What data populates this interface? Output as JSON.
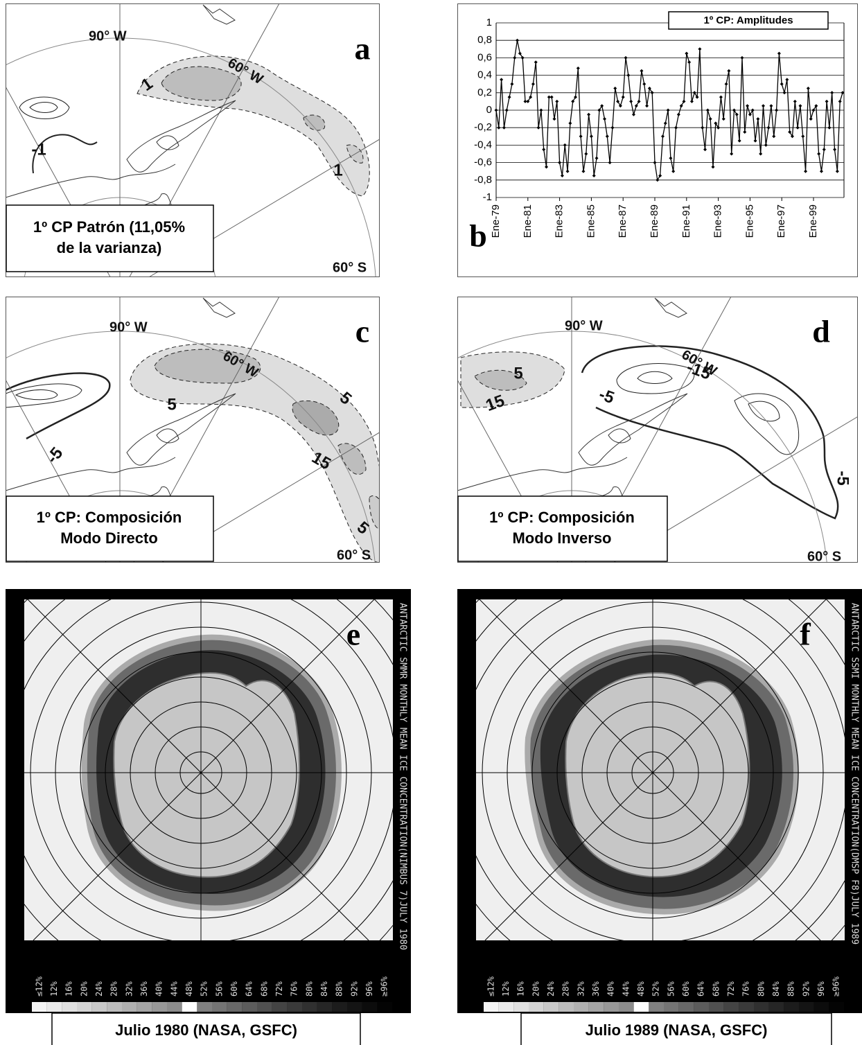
{
  "panels": [
    {
      "letter": "a",
      "labels": [
        "90° W",
        "60° W",
        "60° S"
      ],
      "contours": [
        "1",
        "-1",
        "1"
      ],
      "caption": [
        "1º CP Patrón (11,05%",
        "de la varianza)"
      ]
    },
    {
      "letter": "c",
      "labels": [
        "90° W",
        "60° W",
        "60° S"
      ],
      "contours": [
        "5",
        "-5",
        "5",
        "15",
        "5"
      ],
      "caption": [
        "1º CP: Composición",
        "Modo Directo"
      ]
    },
    {
      "letter": "d",
      "labels": [
        "90° W",
        "60° W",
        "60° S"
      ],
      "contours": [
        "5",
        "15",
        "-15",
        "-5",
        "-5"
      ],
      "caption": [
        "1º CP: Composición",
        "Modo Inverso"
      ]
    }
  ],
  "chart_letter": "b",
  "chart_data": {
    "type": "line",
    "categories": [
      "Ene-79",
      null,
      null,
      null,
      null,
      null,
      null,
      null,
      null,
      null,
      null,
      null,
      "Ene-81",
      null,
      null,
      null,
      null,
      null,
      null,
      null,
      null,
      null,
      null,
      null,
      "Ene-83",
      null,
      null,
      null,
      null,
      null,
      null,
      null,
      null,
      null,
      null,
      null,
      "Ene-85",
      null,
      null,
      null,
      null,
      null,
      null,
      null,
      null,
      null,
      null,
      null,
      "Ene-87",
      null,
      null,
      null,
      null,
      null,
      null,
      null,
      null,
      null,
      null,
      null,
      "Ene-89",
      null,
      null,
      null,
      null,
      null,
      null,
      null,
      null,
      null,
      null,
      null,
      "Ene-91",
      null,
      null,
      null,
      null,
      null,
      null,
      null,
      null,
      null,
      null,
      null,
      "Ene-93",
      null,
      null,
      null,
      null,
      null,
      null,
      null,
      null,
      null,
      null,
      null,
      "Ene-95",
      null,
      null,
      null,
      null,
      null,
      null,
      null,
      null,
      null,
      null,
      null,
      "Ene-97",
      null,
      null,
      null,
      null,
      null,
      null,
      null,
      null,
      null,
      null,
      null,
      "Ene-99",
      null,
      null,
      null,
      null,
      null,
      null,
      null,
      null,
      null,
      null,
      null
    ],
    "series": [
      {
        "name": "1º CP: Amplitudes",
        "color": "#000000",
        "values": [
          0,
          -0.2,
          0.35,
          -0.2,
          0,
          0.15,
          0.3,
          0.6,
          0.8,
          0.65,
          0.6,
          0.1,
          0.1,
          0.15,
          0.3,
          0.55,
          -0.2,
          0,
          -0.45,
          -0.65,
          0.15,
          0.15,
          -0.1,
          0.1,
          -0.6,
          -0.75,
          -0.4,
          -0.7,
          -0.15,
          0.1,
          0.15,
          0.48,
          -0.3,
          -0.7,
          -0.5,
          -0.05,
          -0.3,
          -0.75,
          -0.55,
          0,
          0.05,
          -0.1,
          -0.3,
          -0.6,
          -0.2,
          0.25,
          0.1,
          0.05,
          0.15,
          0.6,
          0.4,
          0.1,
          -0.05,
          0.05,
          0.1,
          0.45,
          0.3,
          0.05,
          0.25,
          0.2,
          -0.6,
          -0.8,
          -0.75,
          -0.3,
          -0.15,
          0,
          -0.55,
          -0.7,
          -0.2,
          -0.05,
          0.05,
          0.1,
          0.65,
          0.55,
          0.1,
          0.2,
          0.15,
          0.7,
          -0.2,
          -0.45,
          0,
          -0.1,
          -0.65,
          -0.15,
          -0.2,
          0.15,
          -0.1,
          0.3,
          0.45,
          -0.5,
          0,
          -0.05,
          -0.35,
          0.6,
          -0.25,
          0.05,
          -0.05,
          0,
          -0.35,
          -0.1,
          -0.5,
          0.05,
          -0.4,
          -0.2,
          0.05,
          -0.3,
          0,
          0.65,
          0.3,
          0.2,
          0.35,
          -0.25,
          -0.3,
          0.1,
          -0.2,
          0.05,
          -0.3,
          -0.7,
          0.25,
          -0.1,
          0,
          0.05,
          -0.5,
          -0.7,
          -0.45,
          0.1,
          -0.2,
          0.2,
          -0.45,
          -0.7,
          0.1,
          0.2
        ]
      }
    ],
    "ylim": [
      -1,
      1
    ],
    "yticks": [
      1,
      {
        "value": 0.8,
        "label": "0,8"
      },
      {
        "value": 0.6,
        "label": "0,6"
      },
      {
        "value": 0.4,
        "label": "0,4"
      },
      {
        "value": 0.2,
        "label": "0,2"
      },
      0,
      {
        "value": -0.2,
        "label": "-0,2"
      },
      {
        "value": -0.4,
        "label": "-0,4"
      },
      {
        "value": -0.6,
        "label": "-0,6"
      },
      {
        "value": -0.8,
        "label": "-0,8"
      },
      -1
    ],
    "grid": true
  },
  "satellite": [
    {
      "letter": "e",
      "header": "ANTARCTIC SMMR MONTHLY MEAN ICE CONCENTRATION(NIMBUS 7)JULY 1980",
      "caption": "Julio 1980  (NASA, GSFC)"
    },
    {
      "letter": "f",
      "header": "ANTARCTIC SSMI MONTHLY MEAN ICE CONCENTRATION(DMSP F8)JULY 1989",
      "caption": "Julio 1989  (NASA, GSFC)"
    }
  ],
  "scale_labels": [
    "≤12%",
    "12%",
    "16%",
    "20%",
    "24%",
    "28%",
    "32%",
    "36%",
    "40%",
    "44%",
    "48%",
    "52%",
    "56%",
    "60%",
    "64%",
    "68%",
    "72%",
    "76%",
    "80%",
    "84%",
    "88%",
    "92%",
    "96%",
    "≥96%"
  ]
}
